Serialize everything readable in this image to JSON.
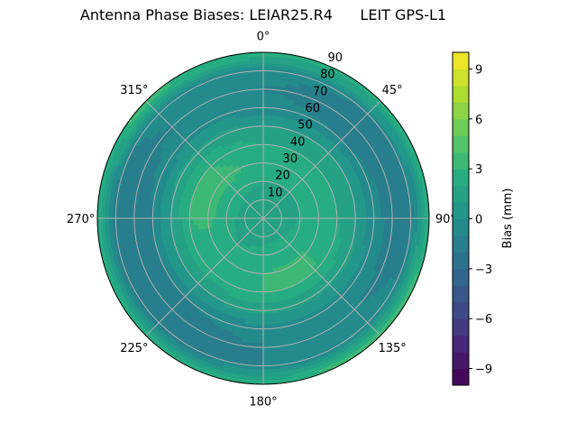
{
  "chart_data": {
    "type": "contour",
    "projection": "polar",
    "title": "Antenna Phase Biases: LEIAR25.R4      LEIT GPS-L1",
    "theta_direction": "clockwise",
    "theta_zero": "north",
    "angle_tick_labels": [
      "0°",
      "45°",
      "90°",
      "135°",
      "180°",
      "225°",
      "270°",
      "315°"
    ],
    "radial_tick_labels": [
      "10",
      "20",
      "30",
      "40",
      "50",
      "60",
      "70",
      "80",
      "90"
    ],
    "radial_range": [
      0,
      90
    ],
    "grid": true,
    "colormap": "viridis",
    "colorbar": {
      "label": "Bias (mm)",
      "range": [
        -10,
        10
      ],
      "levels_step": 1,
      "tick_labels": [
        "-9",
        "-6",
        "-3",
        "0",
        "3",
        "6",
        "9"
      ]
    },
    "zenith": [
      0,
      10,
      20,
      30,
      40,
      50,
      60,
      70,
      80,
      90
    ],
    "azimuth": [
      0,
      45,
      90,
      135,
      180,
      225,
      270,
      315
    ],
    "values": [
      [
        1,
        1,
        1,
        1,
        1,
        1,
        1,
        1
      ],
      [
        1.5,
        1.5,
        1.5,
        1.5,
        1.5,
        1.5,
        1.5,
        1.5
      ],
      [
        2,
        2,
        2,
        2.5,
        2.5,
        2,
        2.5,
        2.5
      ],
      [
        2.5,
        2,
        2,
        3.2,
        3,
        2.5,
        3.2,
        3.5
      ],
      [
        2,
        2,
        2,
        3,
        3,
        2.5,
        3,
        3
      ],
      [
        1,
        1,
        1,
        1.5,
        1.5,
        1,
        1,
        1.5
      ],
      [
        -0.5,
        -1,
        -0.5,
        -0.5,
        -0.5,
        -1,
        -1,
        -0.5
      ],
      [
        -1,
        -2,
        -1.5,
        -1,
        -1,
        -2,
        -2,
        -1
      ],
      [
        -0.5,
        -1,
        -1.5,
        -0.5,
        -1,
        -2,
        -2,
        -0.5
      ],
      [
        3,
        3,
        3,
        4,
        3,
        3,
        3,
        3.5
      ]
    ]
  }
}
